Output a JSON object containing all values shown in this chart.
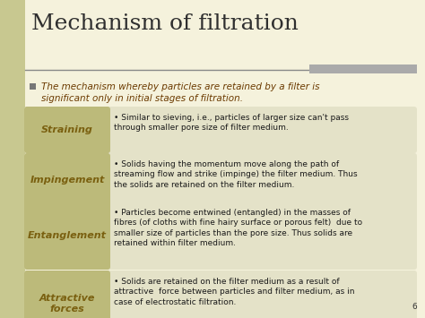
{
  "title": "Mechanism of filtration",
  "title_color": "#2F2F2F",
  "title_fontsize": 18,
  "bg_color": "#F5F2DC",
  "intro_color": "#6B3A00",
  "intro_fontsize": 7.5,
  "bullet_color": "#1A1A1A",
  "bullet_fontsize": 6.5,
  "label_color": "#7A6010",
  "label_fontsize": 8,
  "label_bg_color": "#BCBA7A",
  "row_bg_color": "#E4E2C8",
  "page_num": "6",
  "left_bar_color": "#C8C890",
  "divider_color": "#888888",
  "gray_bar_color": "#AAAAAA",
  "rows": [
    {
      "label": "Straining",
      "text": "Similar to sieving, i.e., particles of larger size can't pass\nthrough smaller pore size of filter medium."
    },
    {
      "label": "Impingement",
      "text": "Solids having the momentum move along the path of\nstreaming flow and strike (impinge) the filter medium. Thus\nthe solids are retained on the filter medium."
    },
    {
      "label": "Entanglement",
      "text": "Particles become entwined (entangled) in the masses of\nfibres (of cloths with fine hairy surface or porous felt)  due to\nsmaller size of particles than the pore size. Thus solids are\nretained within filter medium."
    },
    {
      "label": "Attractive\nforces",
      "text": "Solids are retained on the filter medium as a result of\nattractive  force between particles and filter medium, as in\ncase of electrostatic filtration."
    }
  ]
}
